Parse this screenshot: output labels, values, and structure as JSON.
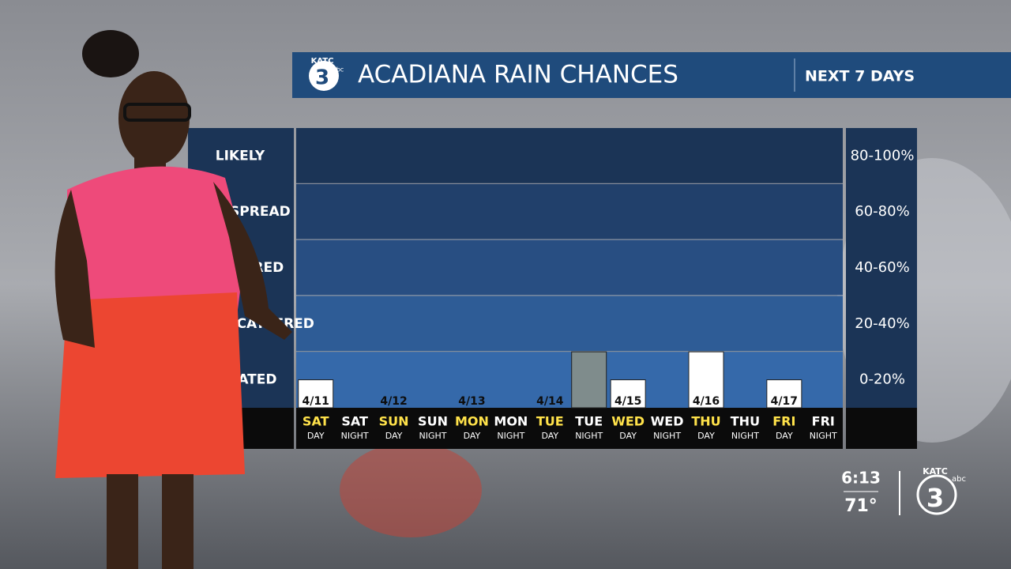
{
  "header": {
    "logo": "KATC",
    "channel": "3",
    "network": "abc",
    "title": "ACADIANA RAIN CHANCES",
    "subtitle": "NEXT 7 DAYS"
  },
  "overlay": {
    "time": "6:13",
    "temperature": "71°",
    "logo": "KATC",
    "channel": "3",
    "network": "abc"
  },
  "chart_data": {
    "type": "bar",
    "categories": [
      "SAT",
      "SAT",
      "SUN",
      "SUN",
      "MON",
      "MON",
      "TUE",
      "TUE",
      "WED",
      "WED",
      "THU",
      "THU",
      "FRI",
      "FRI"
    ],
    "sublabels": [
      "DAY",
      "NIGHT",
      "DAY",
      "NIGHT",
      "DAY",
      "NIGHT",
      "DAY",
      "NIGHT",
      "DAY",
      "NIGHT",
      "DAY",
      "NIGHT",
      "DAY",
      "NIGHT"
    ],
    "dates": [
      "4/11",
      null,
      "4/12",
      null,
      "4/13",
      null,
      "4/14",
      null,
      "4/15",
      null,
      "4/16",
      null,
      "4/17",
      null
    ],
    "values": [
      10,
      0,
      0,
      0,
      0,
      0,
      0,
      20,
      10,
      0,
      20,
      0,
      10,
      0
    ],
    "colors": [
      "#ffffff",
      "#ffffff",
      "#ffffff",
      "#ffffff",
      "#ffffff",
      "#ffffff",
      "#ffffff",
      "#7f8c8c",
      "#ffffff",
      "#ffffff",
      "#ffffff",
      "#ffffff",
      "#ffffff",
      "#ffffff"
    ],
    "ylim": [
      0,
      100
    ],
    "bands": [
      {
        "from": 0,
        "to": 20,
        "label": "0-20%",
        "name": "ISOLATED",
        "color": "#3569aa"
      },
      {
        "from": 20,
        "to": 40,
        "label": "20-40%",
        "name": "WIDELY SCATTERED",
        "color": "#2e5c96"
      },
      {
        "from": 40,
        "to": 60,
        "label": "40-60%",
        "name": "SCATTERED",
        "color": "#284e82"
      },
      {
        "from": 60,
        "to": 80,
        "label": "60-80%",
        "name": "WIDESPREAD",
        "color": "#21406b"
      },
      {
        "from": 80,
        "to": 100,
        "label": "80-100%",
        "name": "LIKELY",
        "color": "#1b3456"
      }
    ]
  }
}
